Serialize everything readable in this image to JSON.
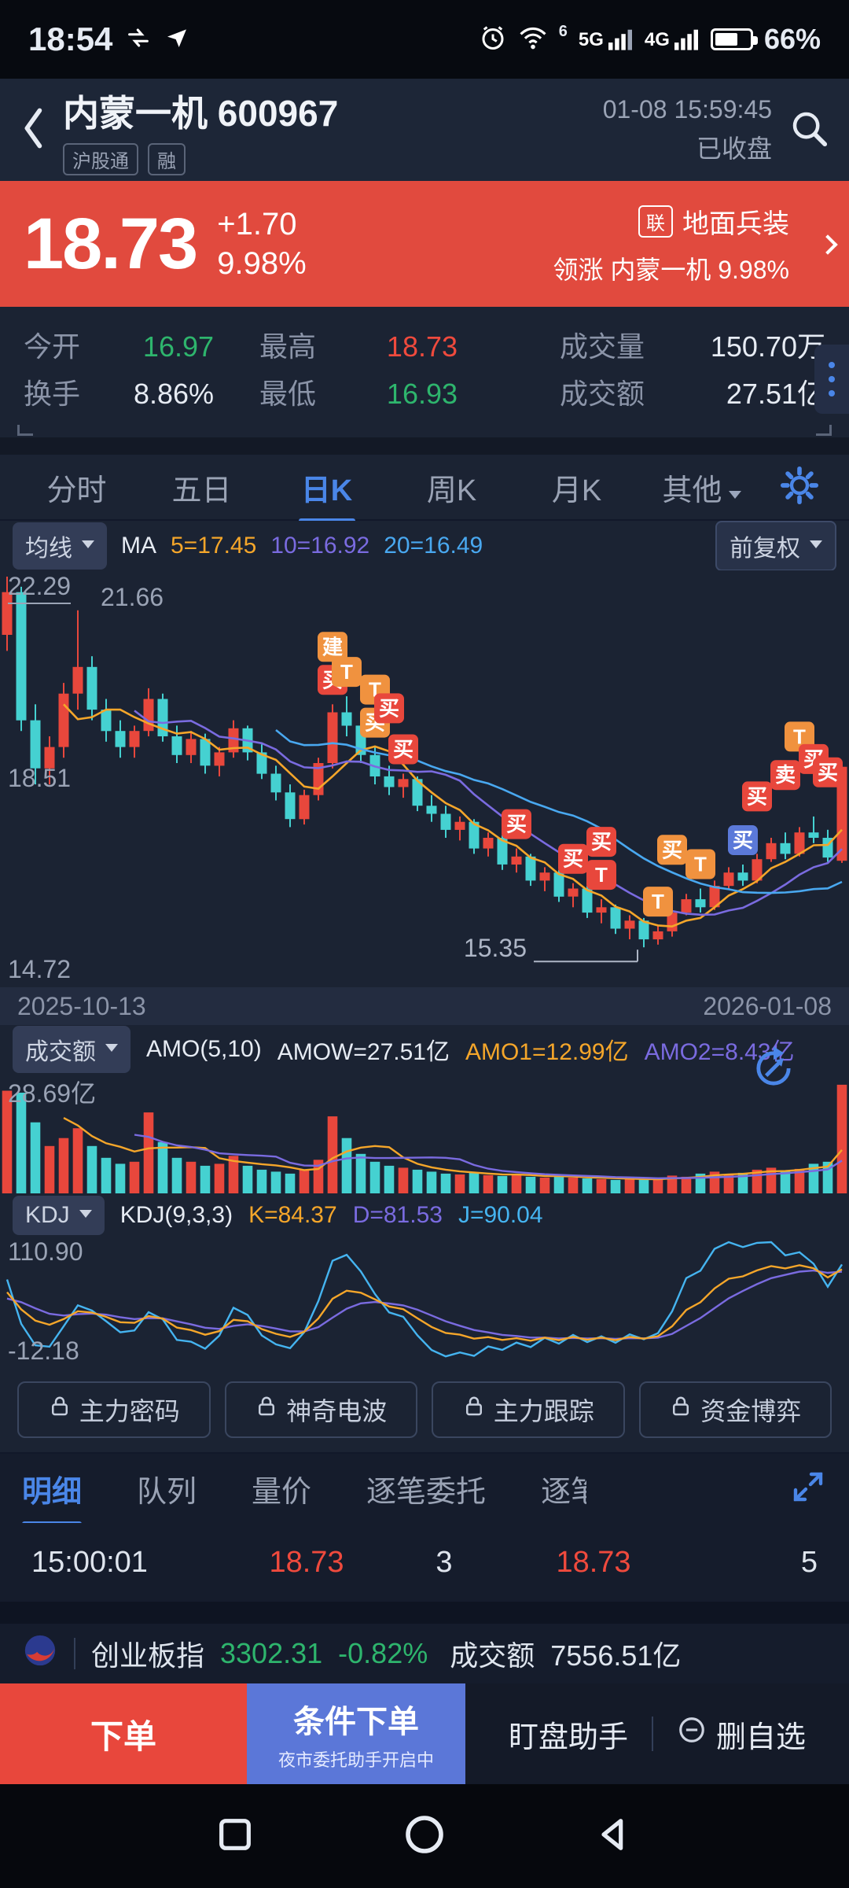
{
  "status_bar": {
    "time": "18:54",
    "battery_pct": "66%",
    "net1": "5G",
    "net2": "4G",
    "wifi_badge": "6"
  },
  "header": {
    "title": "内蒙一机 600967",
    "tag1": "沪股通",
    "tag2": "融",
    "datetime": "01-08 15:59:45",
    "market_status": "已收盘"
  },
  "banner": {
    "price": "18.73",
    "change": "+1.70",
    "pct": "9.98%",
    "sector_badge": "联",
    "sector": "地面兵装",
    "leading": "领涨 内蒙一机 9.98%"
  },
  "stats": {
    "r1c1_label": "今开",
    "r1c1": "16.97",
    "r1c2_label": "最高",
    "r1c2": "18.73",
    "r1c3_label": "成交量",
    "r1c3": "150.70万",
    "r2c1_label": "换手",
    "r2c1": "8.86%",
    "r2c2_label": "最低",
    "r2c2": "16.93",
    "r2c3_label": "成交额",
    "r2c3": "27.51亿"
  },
  "tabs": {
    "items": [
      "分时",
      "五日",
      "日K",
      "周K",
      "月K",
      "其他"
    ],
    "active": "日K"
  },
  "ma_bar": {
    "selector": "均线",
    "ma": "MA",
    "ma5": "5=17.45",
    "ma10": "10=16.92",
    "ma20": "20=16.49",
    "adjust": "前复权"
  },
  "axis": {
    "top": "22.29",
    "second": "21.66",
    "mid": "18.51",
    "bottom": "14.72",
    "low_callout": "15.35",
    "date_start": "2025-10-13",
    "date_end": "2026-01-08"
  },
  "amo_bar": {
    "selector": "成交额",
    "name": "AMO(5,10)",
    "amow": "AMOW=27.51亿",
    "amo1": "AMO1=12.99亿",
    "amo2": "AMO2=8.43亿",
    "y_max": "28.69亿"
  },
  "kdj_bar": {
    "selector": "KDJ",
    "name": "KDJ(9,3,3)",
    "k": "K=84.37",
    "d": "D=81.53",
    "j": "J=90.04",
    "y_max": "110.90",
    "y_min": "-12.18"
  },
  "features": {
    "items": [
      "主力密码",
      "神奇电波",
      "主力跟踪",
      "资金博弈"
    ]
  },
  "detail_tabs": {
    "items": [
      "明细",
      "队列",
      "量价",
      "逐笔委托",
      "逐笔"
    ],
    "active": "明细"
  },
  "trade": {
    "time": "15:00:01",
    "price1": "18.73",
    "vol1": "3",
    "price2": "18.73",
    "vol2": "5"
  },
  "index_bar": {
    "name": "创业板指",
    "value": "3302.31",
    "pct": "-0.82%",
    "amount_label": "成交额",
    "amount": "7556.51亿"
  },
  "action_bar": {
    "order": "下单",
    "cond_order": "条件下单",
    "cond_sub": "夜市委托助手开启中",
    "monitor": "盯盘助手",
    "remove": "删自选"
  },
  "colors": {
    "up": "#e8473c",
    "down": "#45d1d1",
    "accent": "#4a86e8",
    "green": "#2eb56d",
    "banner": "#e14a3e"
  },
  "chart_data": {
    "type": "candlestick",
    "title": "内蒙一机 600967 日K",
    "price_range": [
      14.72,
      22.29
    ],
    "volume_max": 28.69,
    "kdj_range": [
      -12.18,
      110.9
    ],
    "date_start": "2025-10-13",
    "date_end": "2026-01-08",
    "last": {
      "open": 16.97,
      "high": 18.73,
      "low": 16.93,
      "close": 18.73,
      "change": 1.7,
      "pct": 9.98,
      "amount_yi": 27.51
    },
    "ma_last": {
      "ma5": 17.45,
      "ma10": 16.92,
      "ma20": 16.49
    },
    "amo_last": {
      "amow": 27.51,
      "amo1": 12.99,
      "amo2": 8.43
    },
    "kdj_last": {
      "k": 84.37,
      "d": 81.53,
      "j": 90.04
    },
    "colors": {
      "up": "#e8473c",
      "down": "#45d1d1",
      "ma5": "#f5a62a",
      "ma10": "#7a6be0",
      "ma20": "#49a8f0",
      "j": "#45b4f0",
      "marker_orange": "#f0923f",
      "marker_blue": "#5b79d9"
    },
    "candles": [
      [
        21.2,
        22.29,
        20.9,
        22.0
      ],
      [
        22.0,
        22.1,
        19.4,
        19.6
      ],
      [
        19.6,
        19.9,
        18.4,
        18.7
      ],
      [
        18.7,
        19.3,
        18.4,
        19.1
      ],
      [
        19.1,
        20.3,
        18.9,
        20.1
      ],
      [
        20.1,
        21.66,
        19.8,
        20.6
      ],
      [
        20.6,
        20.8,
        19.6,
        19.8
      ],
      [
        19.8,
        20.0,
        19.2,
        19.4
      ],
      [
        19.4,
        19.6,
        18.9,
        19.1
      ],
      [
        19.1,
        19.5,
        18.9,
        19.4
      ],
      [
        19.4,
        20.2,
        19.3,
        20.0
      ],
      [
        20.0,
        20.1,
        19.2,
        19.3
      ],
      [
        19.3,
        19.5,
        18.8,
        18.95
      ],
      [
        18.95,
        19.4,
        18.8,
        19.25
      ],
      [
        19.25,
        19.35,
        18.6,
        18.75
      ],
      [
        18.75,
        19.1,
        18.55,
        19.0
      ],
      [
        19.0,
        19.6,
        18.9,
        19.45
      ],
      [
        19.45,
        19.5,
        18.85,
        19.0
      ],
      [
        19.0,
        19.15,
        18.5,
        18.6
      ],
      [
        18.6,
        18.75,
        18.1,
        18.25
      ],
      [
        18.25,
        18.4,
        17.6,
        17.75
      ],
      [
        17.75,
        18.3,
        17.65,
        18.2
      ],
      [
        18.2,
        18.9,
        18.1,
        18.8
      ],
      [
        18.8,
        19.9,
        18.7,
        19.75
      ],
      [
        19.75,
        20.05,
        19.3,
        19.5
      ],
      [
        19.5,
        19.6,
        18.8,
        18.95
      ],
      [
        18.95,
        19.1,
        18.4,
        18.55
      ],
      [
        18.55,
        18.75,
        18.2,
        18.35
      ],
      [
        18.35,
        18.6,
        18.15,
        18.5
      ],
      [
        18.5,
        18.55,
        17.9,
        18.0
      ],
      [
        18.0,
        18.2,
        17.7,
        17.85
      ],
      [
        17.85,
        18.0,
        17.4,
        17.55
      ],
      [
        17.55,
        17.8,
        17.35,
        17.7
      ],
      [
        17.7,
        17.75,
        17.1,
        17.2
      ],
      [
        17.2,
        17.5,
        17.05,
        17.4
      ],
      [
        17.4,
        17.45,
        16.8,
        16.9
      ],
      [
        16.9,
        17.2,
        16.75,
        17.05
      ],
      [
        17.05,
        17.1,
        16.5,
        16.6
      ],
      [
        16.6,
        16.85,
        16.4,
        16.75
      ],
      [
        16.75,
        16.8,
        16.2,
        16.3
      ],
      [
        16.3,
        16.55,
        16.1,
        16.45
      ],
      [
        16.45,
        16.5,
        15.9,
        16.0
      ],
      [
        16.0,
        16.25,
        15.8,
        16.1
      ],
      [
        16.1,
        16.15,
        15.6,
        15.7
      ],
      [
        15.7,
        15.95,
        15.5,
        15.85
      ],
      [
        15.85,
        15.9,
        15.35,
        15.5
      ],
      [
        15.5,
        15.75,
        15.4,
        15.65
      ],
      [
        15.65,
        16.1,
        15.55,
        16.0
      ],
      [
        16.0,
        16.35,
        15.95,
        16.25
      ],
      [
        16.25,
        16.45,
        16.0,
        16.1
      ],
      [
        16.1,
        16.6,
        16.05,
        16.5
      ],
      [
        16.5,
        16.85,
        16.45,
        16.75
      ],
      [
        16.75,
        16.9,
        16.5,
        16.6
      ],
      [
        16.6,
        17.1,
        16.55,
        17.0
      ],
      [
        17.0,
        17.4,
        16.95,
        17.3
      ],
      [
        17.3,
        17.5,
        17.0,
        17.1
      ],
      [
        17.1,
        17.6,
        17.05,
        17.5
      ],
      [
        17.5,
        17.8,
        17.3,
        17.4
      ],
      [
        17.4,
        17.55,
        16.95,
        17.03
      ],
      [
        16.97,
        18.73,
        16.93,
        18.73
      ]
    ],
    "volumes_yi": [
      26.0,
      25.5,
      18.0,
      12.0,
      14.0,
      16.5,
      12.0,
      9.0,
      7.5,
      8.0,
      20.5,
      13.0,
      9.0,
      8.0,
      7.0,
      7.5,
      9.5,
      7.0,
      6.0,
      5.5,
      5.0,
      6.0,
      8.5,
      19.5,
      14.0,
      10.0,
      8.0,
      7.0,
      6.5,
      6.0,
      5.5,
      5.0,
      4.8,
      5.2,
      4.6,
      4.4,
      4.8,
      4.2,
      4.0,
      4.4,
      4.0,
      3.8,
      3.6,
      3.4,
      3.8,
      3.5,
      3.6,
      4.5,
      4.2,
      5.0,
      5.5,
      4.8,
      5.2,
      6.0,
      6.5,
      5.8,
      6.2,
      7.5,
      8.0,
      27.51
    ],
    "markers": [
      {
        "i": 23,
        "t": "建",
        "c": "o",
        "l": 1
      },
      {
        "i": 23,
        "t": "买",
        "c": "r",
        "l": 0
      },
      {
        "i": 24,
        "t": "T",
        "c": "o",
        "l": 0
      },
      {
        "i": 26,
        "t": "T",
        "c": "o",
        "l": 1
      },
      {
        "i": 26,
        "t": "买",
        "c": "o",
        "l": 0
      },
      {
        "i": 27,
        "t": "买",
        "c": "r",
        "l": 1
      },
      {
        "i": 28,
        "t": "买",
        "c": "r",
        "l": 0
      },
      {
        "i": 36,
        "t": "买",
        "c": "r",
        "l": 0
      },
      {
        "i": 40,
        "t": "买",
        "c": "r",
        "l": 0
      },
      {
        "i": 42,
        "t": "买",
        "c": "r",
        "l": 1
      },
      {
        "i": 42,
        "t": "T",
        "c": "r",
        "l": 0
      },
      {
        "i": 46,
        "t": "T",
        "c": "o",
        "l": 0
      },
      {
        "i": 47,
        "t": "买",
        "c": "o",
        "l": 1
      },
      {
        "i": 49,
        "t": "T",
        "c": "o",
        "l": 0
      },
      {
        "i": 52,
        "t": "买",
        "c": "b",
        "l": 0
      },
      {
        "i": 53,
        "t": "买",
        "c": "r",
        "l": 1
      },
      {
        "i": 55,
        "t": "卖",
        "c": "r",
        "l": 1
      },
      {
        "i": 56,
        "t": "T",
        "c": "o",
        "l": 2
      },
      {
        "i": 57,
        "t": "买",
        "c": "r",
        "l": 1
      },
      {
        "i": 58,
        "t": "买",
        "c": "r",
        "l": 1
      }
    ],
    "low_callout": {
      "index": 45,
      "price": 15.35
    }
  }
}
